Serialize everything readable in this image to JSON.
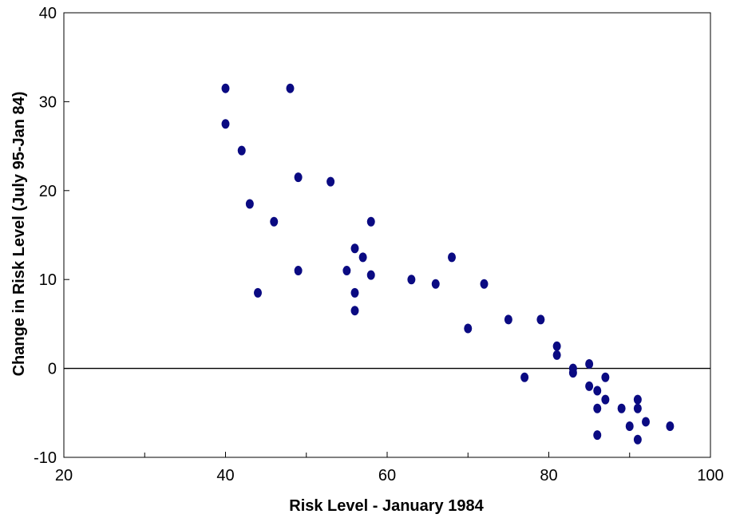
{
  "chart_data": {
    "type": "scatter",
    "title": "",
    "xlabel": "Risk Level - January 1984",
    "ylabel": "Change in Risk Level (July 95-Jan 84)",
    "xlim": [
      20,
      100
    ],
    "ylim": [
      -10,
      40
    ],
    "xticks": [
      20,
      40,
      60,
      80,
      100
    ],
    "yticks": [
      -10,
      0,
      10,
      20,
      30,
      40
    ],
    "x_minor_ticks": [
      30,
      50,
      70,
      90
    ],
    "reference_line_y": 0,
    "grid": false,
    "legend": "none",
    "marker_color": "#0a0a82",
    "points": [
      {
        "x": 40,
        "y": 31.5
      },
      {
        "x": 40,
        "y": 27.5
      },
      {
        "x": 42,
        "y": 24.5
      },
      {
        "x": 43,
        "y": 18.5
      },
      {
        "x": 44,
        "y": 8.5
      },
      {
        "x": 46,
        "y": 16.5
      },
      {
        "x": 48,
        "y": 31.5
      },
      {
        "x": 49,
        "y": 21.5
      },
      {
        "x": 49,
        "y": 11
      },
      {
        "x": 53,
        "y": 21
      },
      {
        "x": 55,
        "y": 11
      },
      {
        "x": 56,
        "y": 13.5
      },
      {
        "x": 56,
        "y": 8.5
      },
      {
        "x": 56,
        "y": 6.5
      },
      {
        "x": 57,
        "y": 12.5
      },
      {
        "x": 58,
        "y": 16.5
      },
      {
        "x": 58,
        "y": 10.5
      },
      {
        "x": 63,
        "y": 10
      },
      {
        "x": 66,
        "y": 9.5
      },
      {
        "x": 68,
        "y": 12.5
      },
      {
        "x": 70,
        "y": 4.5
      },
      {
        "x": 72,
        "y": 9.5
      },
      {
        "x": 75,
        "y": 5.5
      },
      {
        "x": 77,
        "y": -1
      },
      {
        "x": 79,
        "y": 5.5
      },
      {
        "x": 81,
        "y": 2.5
      },
      {
        "x": 81,
        "y": 1.5
      },
      {
        "x": 83,
        "y": 0
      },
      {
        "x": 83,
        "y": -0.5
      },
      {
        "x": 85,
        "y": 0.5
      },
      {
        "x": 85,
        "y": -2
      },
      {
        "x": 86,
        "y": -2.5
      },
      {
        "x": 86,
        "y": -4.5
      },
      {
        "x": 86,
        "y": -7.5
      },
      {
        "x": 87,
        "y": -1
      },
      {
        "x": 87,
        "y": -3.5
      },
      {
        "x": 89,
        "y": -4.5
      },
      {
        "x": 90,
        "y": -6.5
      },
      {
        "x": 91,
        "y": -3.5
      },
      {
        "x": 91,
        "y": -4.5
      },
      {
        "x": 91,
        "y": -8
      },
      {
        "x": 92,
        "y": -6
      },
      {
        "x": 95,
        "y": -6.5
      }
    ]
  }
}
